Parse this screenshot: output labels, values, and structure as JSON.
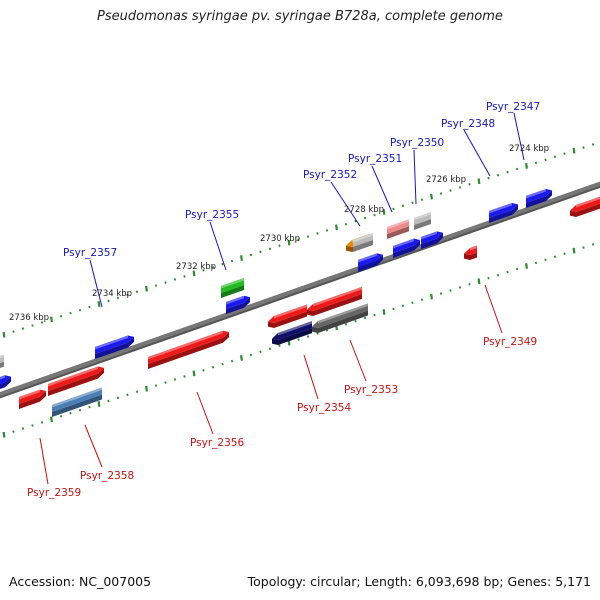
{
  "title": "Pseudomonas syringae pv. syringae B728a, complete genome",
  "footer": {
    "accession": "Accession: NC_007005",
    "topology": "Topology: circular; Length: 6,093,698 bp; Genes: 5,171"
  },
  "colors": {
    "plus_label": "#1515c0",
    "minus_label": "#cc1111",
    "tick_major": "#2e8b2e",
    "tick_minor": "#2e8b2e",
    "backbone": "#777777",
    "kbp_label": "#222222"
  },
  "scale_labels": [
    {
      "id": "kbp-2724",
      "text": "2724 kbp"
    },
    {
      "id": "kbp-2726",
      "text": "2726 kbp"
    },
    {
      "id": "kbp-2728",
      "text": "2728 kbp"
    },
    {
      "id": "kbp-2730",
      "text": "2730 kbp"
    },
    {
      "id": "kbp-2732",
      "text": "2732 kbp"
    },
    {
      "id": "kbp-2734",
      "text": "2734 kbp"
    },
    {
      "id": "kbp-2736",
      "text": "2736 kbp"
    }
  ],
  "genes": [
    {
      "id": "psyr-2347",
      "label": "Psyr_2347",
      "strand": "+",
      "color": "#1a1aee"
    },
    {
      "id": "psyr-2348",
      "label": "Psyr_2348",
      "strand": "+",
      "color": "#1a1aee"
    },
    {
      "id": "psyr-2349",
      "label": "Psyr_2349",
      "strand": "-",
      "color": "#ee1a1a"
    },
    {
      "id": "psyr-2350",
      "label": "Psyr_2350",
      "strand": "+",
      "color": "#bbbbbb"
    },
    {
      "id": "psyr-2351",
      "label": "Psyr_2351",
      "strand": "+",
      "color": "#ee8888"
    },
    {
      "id": "psyr-2352",
      "label": "Psyr_2352",
      "strand": "+",
      "color": "#ee8800"
    },
    {
      "id": "psyr-2353",
      "label": "Psyr_2353",
      "strand": "-",
      "color": "#666666"
    },
    {
      "id": "psyr-2354",
      "label": "Psyr_2354",
      "strand": "-",
      "color": "#10106a"
    },
    {
      "id": "psyr-2355",
      "label": "Psyr_2355",
      "strand": "+",
      "color": "#22bb22"
    },
    {
      "id": "psyr-2356",
      "label": "Psyr_2356",
      "strand": "-",
      "color": "#ee1a1a"
    },
    {
      "id": "psyr-2357",
      "label": "Psyr_2357",
      "strand": "+",
      "color": "#1a1aee"
    },
    {
      "id": "psyr-2358",
      "label": "Psyr_2358",
      "strand": "-",
      "color": "#4a7fb5"
    },
    {
      "id": "psyr-2359",
      "label": "Psyr_2359",
      "strand": "-",
      "color": "#ee1a1a"
    }
  ]
}
